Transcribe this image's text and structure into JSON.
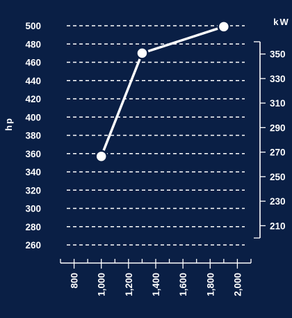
{
  "colors": {
    "background": "#0a1f45",
    "foreground": "#ffffff"
  },
  "chart_data": {
    "type": "line",
    "xlabel": "",
    "ylabel": "hp",
    "y2label": "kW",
    "x": [
      1000,
      1300,
      1900
    ],
    "series": [
      {
        "values": [
          357,
          470,
          499
        ]
      }
    ],
    "xlim": [
      700,
      2100
    ],
    "xticks": [
      800,
      1000,
      1200,
      1400,
      1600,
      1800,
      2000
    ],
    "xtick_labels": [
      "800",
      "1,000",
      "1,200",
      "1,400",
      "1,600",
      "1,800",
      "2,000"
    ],
    "x_minor_step": 100,
    "ylim": [
      260,
      500
    ],
    "yticks": [
      260,
      280,
      300,
      320,
      340,
      360,
      380,
      400,
      420,
      440,
      460,
      480,
      500
    ],
    "y2lim": [
      200,
      360
    ],
    "y2ticks": [
      210,
      230,
      250,
      270,
      290,
      310,
      330,
      350
    ],
    "grid": true
  }
}
